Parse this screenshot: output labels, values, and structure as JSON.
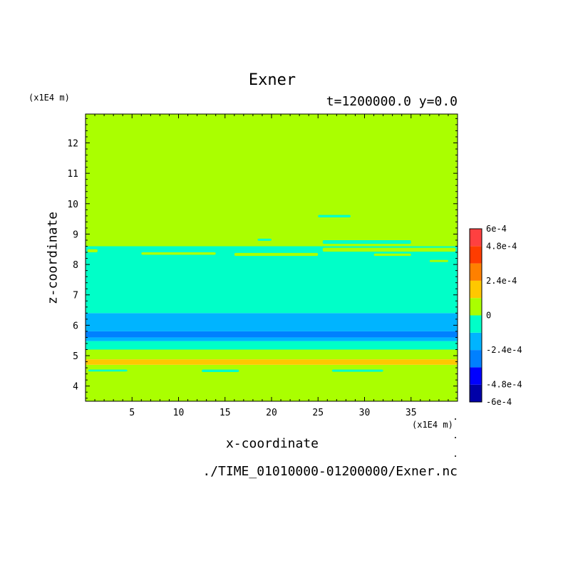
{
  "chart_data": {
    "type": "heatmap",
    "title": "Exner",
    "subtitle": "t=1200000.0 y=0.0",
    "xlabel": "x-coordinate",
    "ylabel": "z-coordinate",
    "x_unit_label": "(x1E4 m)",
    "y_unit_label": "(x1E4 m)",
    "source_file": "./TIME_01010000-01200000/Exner.nc",
    "xlim": [
      0,
      40
    ],
    "ylim": [
      3.5,
      12.95
    ],
    "x_ticks": [
      5,
      10,
      15,
      20,
      25,
      30,
      35
    ],
    "x_tick_labels": [
      "5",
      "10",
      "15",
      "20",
      "25",
      "30",
      "35"
    ],
    "y_ticks": [
      4,
      5,
      6,
      7,
      8,
      9,
      10,
      11,
      12
    ],
    "y_tick_labels": [
      "4",
      "5",
      "6",
      "7",
      "8",
      "9",
      "10",
      "11",
      "12"
    ],
    "colorbar": {
      "levels": [
        -0.0006,
        -0.00048,
        -0.00036,
        -0.00024,
        -0.00012,
        0,
        0.00012,
        0.00024,
        0.00036,
        0.00048,
        0.0006
      ],
      "colors": [
        "#0000a8",
        "#0000ff",
        "#0080ff",
        "#00b4ff",
        "#00ffc8",
        "#aaff00",
        "#ffc800",
        "#ff8000",
        "#ff3c00",
        "#ff4040"
      ],
      "tick_values": [
        -0.0006,
        -0.00048,
        -0.00024,
        0,
        0.00024,
        0.00048,
        0.0006
      ],
      "tick_labels": [
        "-6e-4",
        "-4.8e-4",
        "-2.4e-4",
        "0",
        "2.4e-4",
        "4.8e-4",
        "6e-4"
      ]
    },
    "bands": [
      {
        "z0": 3.5,
        "z1": 4.7,
        "value": 6e-05
      },
      {
        "z0": 4.7,
        "z1": 4.88,
        "value": 0.00018
      },
      {
        "z0": 4.88,
        "z1": 5.2,
        "value": 6e-05
      },
      {
        "z0": 5.2,
        "z1": 5.48,
        "value": -6e-05
      },
      {
        "z0": 5.48,
        "z1": 5.6,
        "value": -0.00018
      },
      {
        "z0": 5.6,
        "z1": 5.8,
        "value": -0.0003
      },
      {
        "z0": 5.8,
        "z1": 6.4,
        "value": -0.00018
      },
      {
        "z0": 6.4,
        "z1": 8.6,
        "value": -6e-05
      },
      {
        "z0": 8.6,
        "z1": 12.95,
        "value": 6e-05
      }
    ],
    "patches": [
      {
        "x0": 0.3,
        "x1": 4.5,
        "z0": 4.48,
        "z1": 4.54,
        "value": -6e-05
      },
      {
        "x0": 12.5,
        "x1": 16.5,
        "z0": 4.46,
        "z1": 4.54,
        "value": -6e-05
      },
      {
        "x0": 26.5,
        "x1": 32.0,
        "z0": 4.47,
        "z1": 4.54,
        "value": -6e-05
      },
      {
        "x0": 16.0,
        "x1": 25.0,
        "z0": 8.28,
        "z1": 8.38,
        "value": 6e-05
      },
      {
        "x0": 6.0,
        "x1": 14.0,
        "z0": 8.32,
        "z1": 8.4,
        "value": 6e-05
      },
      {
        "x0": 0.2,
        "x1": 1.3,
        "z0": 8.4,
        "z1": 8.5,
        "value": 6e-05
      },
      {
        "x0": 25.5,
        "x1": 39.8,
        "z0": 8.42,
        "z1": 8.55,
        "value": 6e-05
      },
      {
        "x0": 31.0,
        "x1": 35.0,
        "z0": 8.28,
        "z1": 8.36,
        "value": 6e-05
      },
      {
        "x0": 37.0,
        "x1": 39.0,
        "z0": 8.08,
        "z1": 8.15,
        "value": 6e-05
      },
      {
        "x0": 25.5,
        "x1": 35.0,
        "z0": 8.68,
        "z1": 8.8,
        "value": -6e-05
      },
      {
        "x0": 18.5,
        "x1": 20.0,
        "z0": 8.78,
        "z1": 8.85,
        "value": -6e-05
      },
      {
        "x0": 25.0,
        "x1": 28.5,
        "z0": 9.55,
        "z1": 9.63,
        "value": -6e-05
      },
      {
        "x0": 6.5,
        "x1": 8.5,
        "z0": 6.46,
        "z1": 6.52,
        "value": -6e-05
      }
    ]
  }
}
